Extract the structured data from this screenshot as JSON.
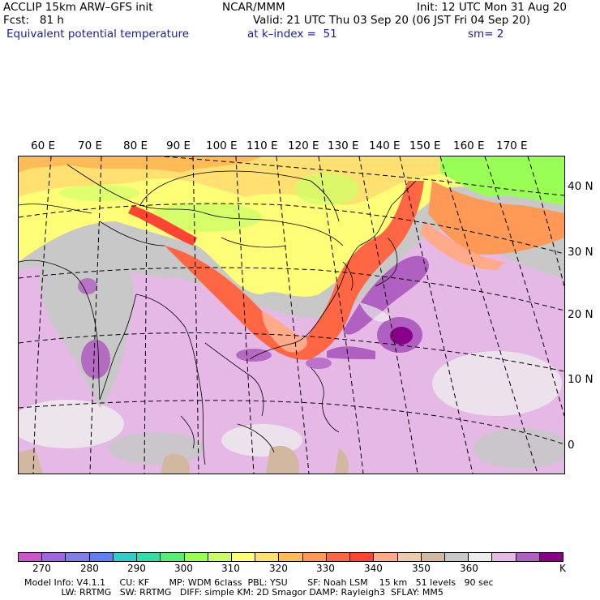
{
  "header": {
    "line1_left": "ACCLIP 15km ARW–GFS init",
    "line1_mid": "NCAR/MMM",
    "line1_right": "Init: 12 UTC Mon 31 Aug 20",
    "line2_left": "Fcst:   81 h",
    "line2_right": "Valid: 21 UTC Thu 03 Sep 20 (06 JST Fri 04 Sep 20)",
    "line3_left": "Equivalent potential temperature",
    "line3_mid": "at k–index =  51",
    "line3_right": "sm= 2"
  },
  "longitude_labels": [
    "60 E",
    "70 E",
    "80 E",
    "90 E",
    "100 E",
    "110 E",
    "120 E",
    "130 E",
    "140 E",
    "150 E",
    "160 E",
    "170 E"
  ],
  "latitude_labels": [
    "40 N",
    "30 N",
    "20 N",
    "10 N",
    "0"
  ],
  "colorbar": {
    "colors": [
      "#cc55cc",
      "#a066dd",
      "#7f7fe6",
      "#6080ee",
      "#33cccc",
      "#33ddaa",
      "#55ee77",
      "#99ff55",
      "#ccff66",
      "#ffff77",
      "#ffe070",
      "#ffbb55",
      "#ff9955",
      "#ff6644",
      "#ff4433",
      "#ffaa88",
      "#eeccaa",
      "#d2b8a0",
      "#c8c8c8",
      "#ececec",
      "#e6b8e6",
      "#b060c0",
      "#880088"
    ],
    "labels": [
      "270",
      "280",
      "290",
      "300",
      "310",
      "320",
      "330",
      "340",
      "350",
      "360",
      "K"
    ]
  },
  "model_info": {
    "line1": "Model Info: V4.1.1     CU: KF       MP: WDM 6class  PBL: YSU       SF: Noah LSM    15 km   51 levels   90 sec",
    "line2": "             LW: RRTMG   SW: RRTMG   DIFF: simple KM: 2D Smagor DAMP: Rayleigh3  SFLAY: MM5"
  }
}
